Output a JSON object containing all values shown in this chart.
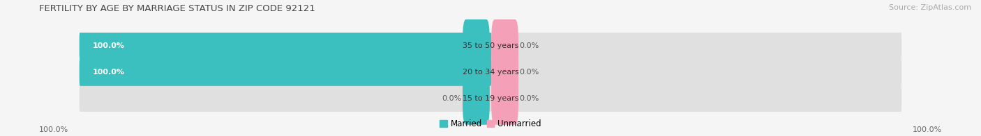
{
  "title": "FERTILITY BY AGE BY MARRIAGE STATUS IN ZIP CODE 92121",
  "source": "Source: ZipAtlas.com",
  "categories": [
    "15 to 19 years",
    "20 to 34 years",
    "35 to 50 years"
  ],
  "married_values": [
    0.0,
    100.0,
    100.0
  ],
  "unmarried_values": [
    0.0,
    0.0,
    0.0
  ],
  "married_color": "#3bbfbf",
  "unmarried_color": "#f4a0b8",
  "bar_bg_color": "#e0e0e0",
  "bar_height": 0.62,
  "title_fontsize": 9.5,
  "source_fontsize": 8,
  "label_fontsize": 8,
  "cat_fontsize": 8,
  "legend_fontsize": 8.5,
  "axis_label_fontsize": 8,
  "background_color": "#f5f5f5",
  "max_value": 100.0,
  "bottom_left_val": "100.0%",
  "bottom_right_val": "100.0%"
}
